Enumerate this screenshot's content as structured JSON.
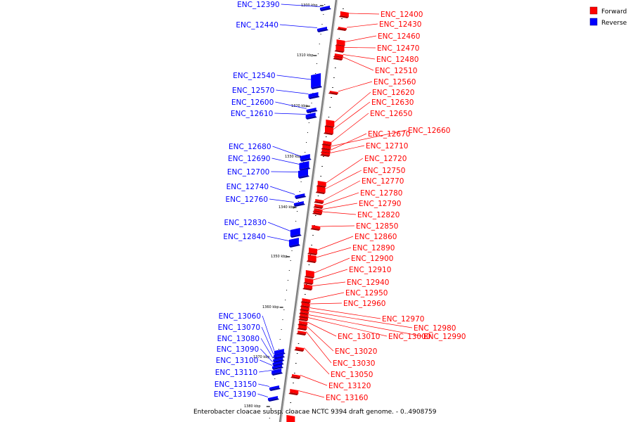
{
  "caption": "Enterobacter cloacae subsp. cloacae NCTC 9394 draft genome. - 0..4908759",
  "colors": {
    "forward": "#ff0000",
    "reverse": "#0000ff",
    "axis": "#808080"
  },
  "legend": [
    {
      "name": "Forward",
      "color": "#ff0000"
    },
    {
      "name": "Reverse",
      "color": "#0000ff"
    }
  ],
  "ticks": [
    "1300 kbp",
    "1310 kbp",
    "1320 kbp",
    "1330 kbp",
    "1340 kbp",
    "1350 kbp",
    "1360 kbp",
    "1370 kbp",
    "1380 kbp"
  ],
  "reverse_labels": [
    "ENC_12390",
    "ENC_12440",
    "ENC_12540",
    "ENC_12570",
    "ENC_12600",
    "ENC_12610",
    "ENC_12680",
    "ENC_12690",
    "ENC_12700",
    "ENC_12740",
    "ENC_12760",
    "ENC_12830",
    "ENC_12840",
    "ENC_13060",
    "ENC_13070",
    "ENC_13080",
    "ENC_13090",
    "ENC_13100",
    "ENC_13110",
    "ENC_13150",
    "ENC_13190"
  ],
  "forward_labels": [
    "ENC_12400",
    "ENC_12430",
    "ENC_12460",
    "ENC_12470",
    "ENC_12480",
    "ENC_12510",
    "ENC_12560",
    "ENC_12620",
    "ENC_12630",
    "ENC_12650",
    "ENC_12660",
    "ENC_12670",
    "ENC_12710",
    "ENC_12720",
    "ENC_12750",
    "ENC_12770",
    "ENC_12780",
    "ENC_12790",
    "ENC_12820",
    "ENC_12850",
    "ENC_12860",
    "ENC_12890",
    "ENC_12900",
    "ENC_12910",
    "ENC_12940",
    "ENC_12950",
    "ENC_12960",
    "ENC_12970",
    "ENC_12980",
    "ENC_13010",
    "ENC_13000",
    "ENC_12990",
    "ENC_13020",
    "ENC_13030",
    "ENC_13050",
    "ENC_13120",
    "ENC_13160"
  ]
}
